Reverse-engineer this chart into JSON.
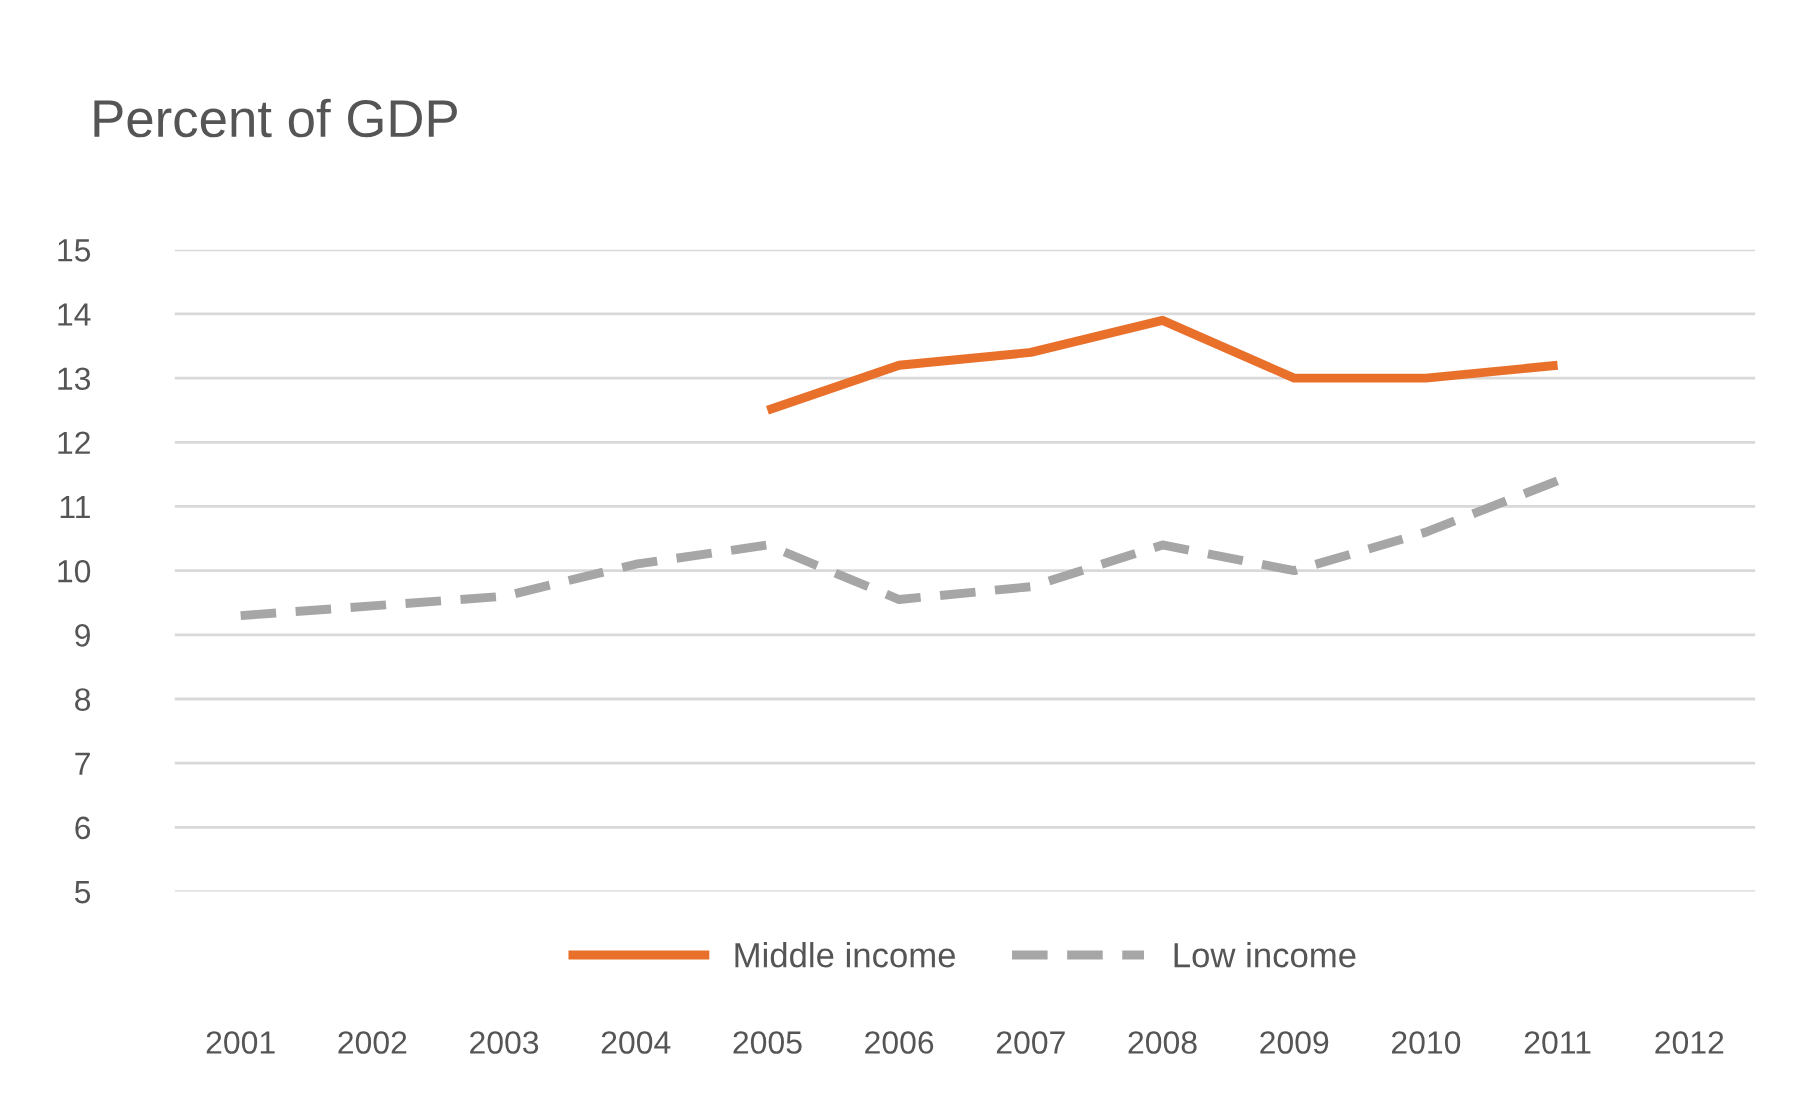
{
  "chart_data": {
    "type": "line",
    "title": "Percent of GDP",
    "categories": [
      "2001",
      "2002",
      "2003",
      "2004",
      "2005",
      "2006",
      "2007",
      "2008",
      "2009",
      "2010",
      "2011",
      "2012"
    ],
    "series": [
      {
        "name": "Middle income",
        "color": "#e8702a",
        "line_style": "solid",
        "values": [
          null,
          null,
          null,
          null,
          12.5,
          13.2,
          13.4,
          13.9,
          13.0,
          13.0,
          13.2,
          null
        ]
      },
      {
        "name": "Low income",
        "color": "#a6a6a6",
        "line_style": "dashed",
        "values": [
          9.3,
          9.45,
          9.6,
          10.1,
          10.4,
          9.55,
          9.75,
          10.4,
          10.0,
          10.6,
          11.4,
          null
        ]
      }
    ],
    "ylim": [
      5,
      15
    ],
    "yticks": [
      5,
      6,
      7,
      8,
      9,
      10,
      11,
      12,
      13,
      14,
      15
    ],
    "grid": "y",
    "legend": "bottom",
    "marker": "none"
  }
}
